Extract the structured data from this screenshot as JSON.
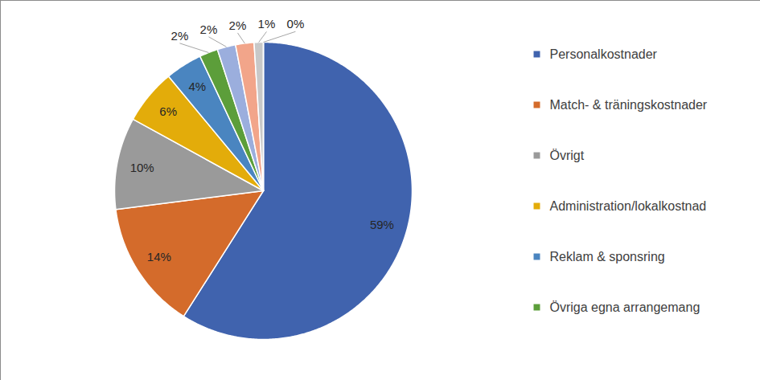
{
  "chart_data": {
    "type": "pie",
    "categories": [
      "Personalkostnader",
      "Match- & träningskostnader",
      "Övrigt",
      "Administration/lokalkostnad",
      "Reklam & sponsring",
      "Övriga egna arrangemang",
      null,
      null,
      null,
      null
    ],
    "values": [
      59,
      14,
      10,
      6,
      4,
      2,
      2,
      2,
      1,
      0
    ],
    "value_labels": [
      "59%",
      "14%",
      "10%",
      "6%",
      "4%",
      "2%",
      "2%",
      "2%",
      "1%",
      "0%"
    ],
    "colors": [
      "#4063ae",
      "#d46b2b",
      "#9a9a9a",
      "#e3ac0a",
      "#4a85c0",
      "#5c9e3a",
      "#9baedd",
      "#f2a58a",
      "#c8c8c8",
      "#f8d57a"
    ],
    "data_labels": true,
    "legend": "right"
  }
}
